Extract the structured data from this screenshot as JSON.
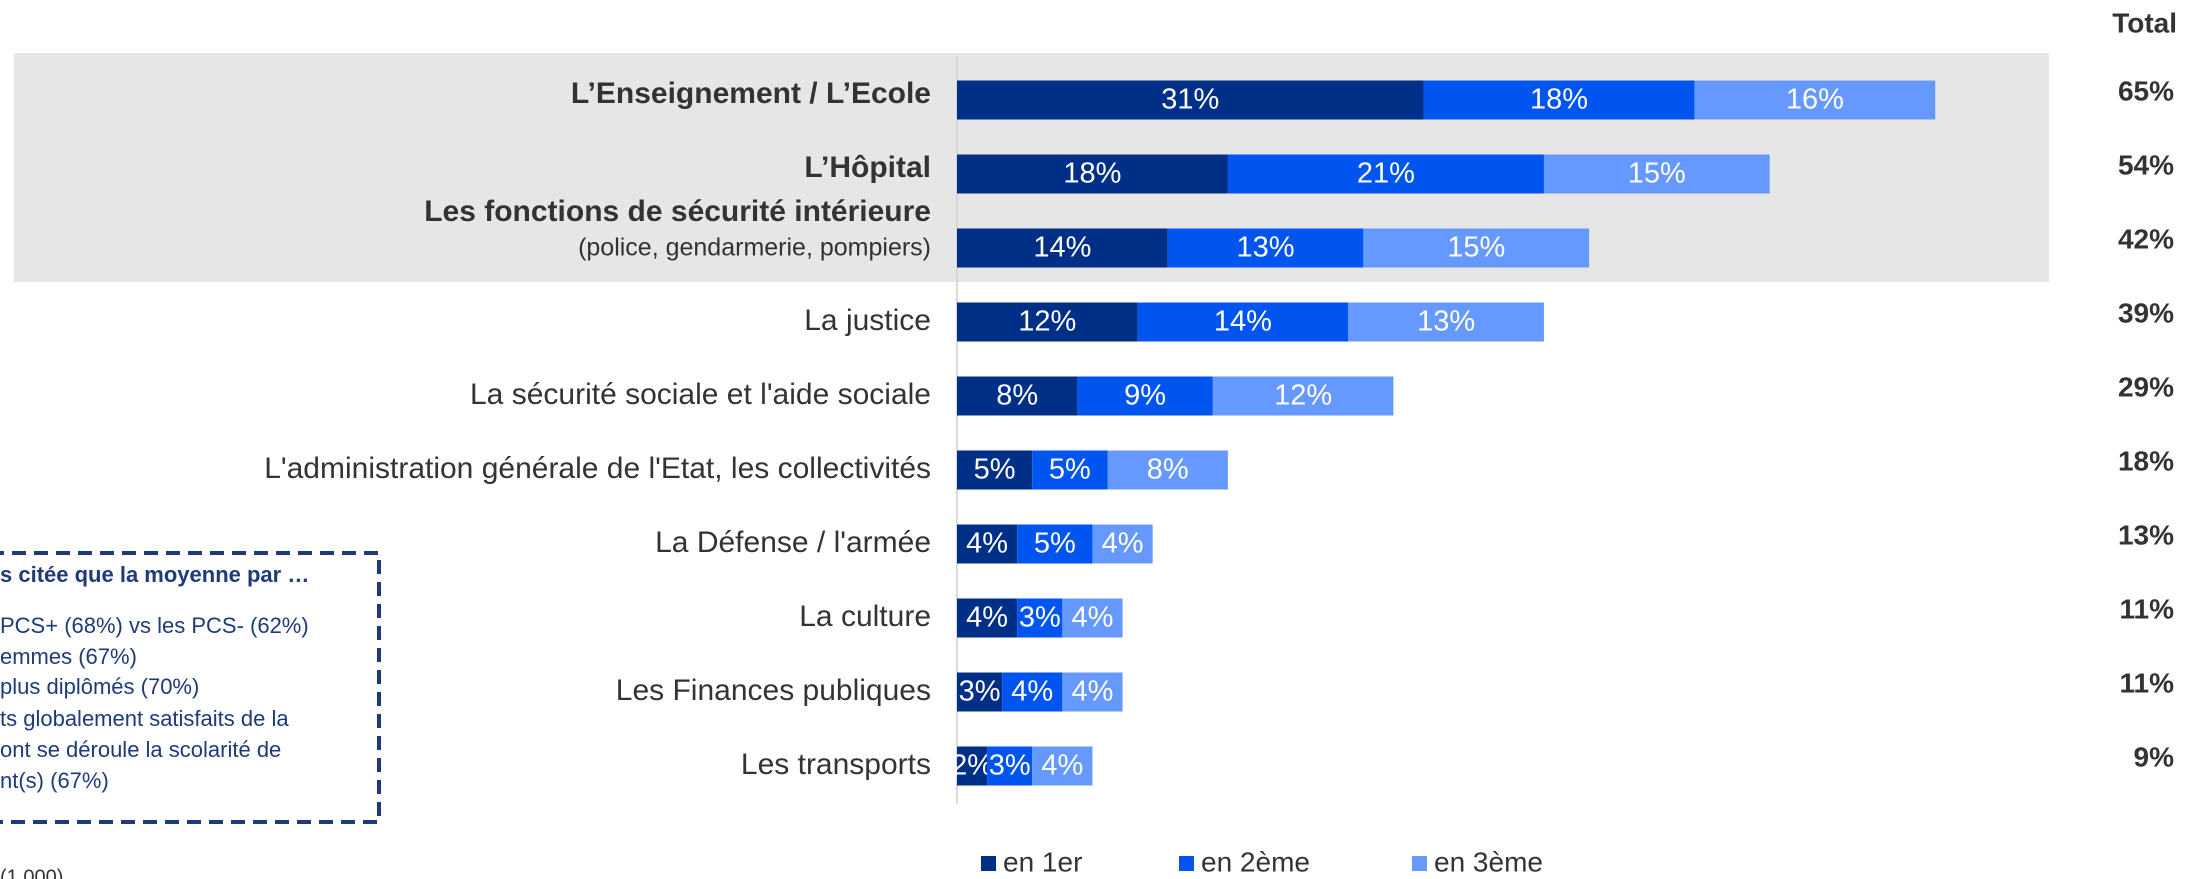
{
  "chart_data": {
    "type": "stacked-barh",
    "categories": [
      "L’Enseignement / L’Ecole",
      "L’Hôpital",
      "Les fonctions de sécurité intérieure",
      "La justice",
      "La sécurité sociale et l'aide sociale",
      "L'administration générale de l'Etat, les collectivités",
      "La Défense / l'armée",
      "La culture",
      "Les Finances publiques",
      "Les transports"
    ],
    "category_notes": [
      null,
      null,
      "(police, gendarmerie, pompiers)",
      null,
      null,
      null,
      null,
      null,
      null,
      null
    ],
    "highlighted": [
      true,
      true,
      true,
      false,
      false,
      false,
      false,
      false,
      false,
      false
    ],
    "series": [
      {
        "name": "en 1er",
        "color": "#002f87",
        "values": [
          31,
          18,
          14,
          12,
          8,
          5,
          4,
          4,
          3,
          2
        ],
        "value_labels": [
          "31%",
          "18%",
          "14%",
          "12%",
          "8%",
          "5%",
          "4%",
          "4%",
          "3%",
          "2%"
        ]
      },
      {
        "name": "en 2ème",
        "color": "#0055f0",
        "values": [
          18,
          21,
          13,
          14,
          9,
          5,
          5,
          3,
          4,
          3
        ],
        "value_labels": [
          "18%",
          "21%",
          "13%",
          "14%",
          "9%",
          "5%",
          "5%",
          "3%",
          "4%",
          "3%"
        ]
      },
      {
        "name": "en 3ème",
        "color": "#6699ff",
        "values": [
          16,
          15,
          15,
          13,
          12,
          8,
          4,
          4,
          4,
          4
        ],
        "value_labels": [
          "16%",
          "15%",
          "15%",
          "13%",
          "12%",
          "8%",
          "4%",
          "4%",
          "4%",
          "4%"
        ]
      }
    ],
    "totals_title": "Total",
    "totals": [
      65,
      54,
      42,
      39,
      29,
      18,
      13,
      11,
      11,
      9
    ],
    "totals_labels": [
      "65%",
      "54%",
      "42%",
      "39%",
      "29%",
      "18%",
      "13%",
      "11%",
      "11%",
      "9%"
    ],
    "xlim": [
      0,
      80
    ],
    "legend": "bottom",
    "annotation": {
      "title": "s citée que la moyenne par …",
      "lines": [
        "PCS+ (68%) vs les PCS- (62%)",
        "emmes (67%)",
        "plus diplômés (70%)",
        "ts globalement satisfaits de la",
        "ont se déroule la scolarité de",
        "nt(s) (67%)"
      ]
    },
    "footnote": "(1 000)"
  }
}
